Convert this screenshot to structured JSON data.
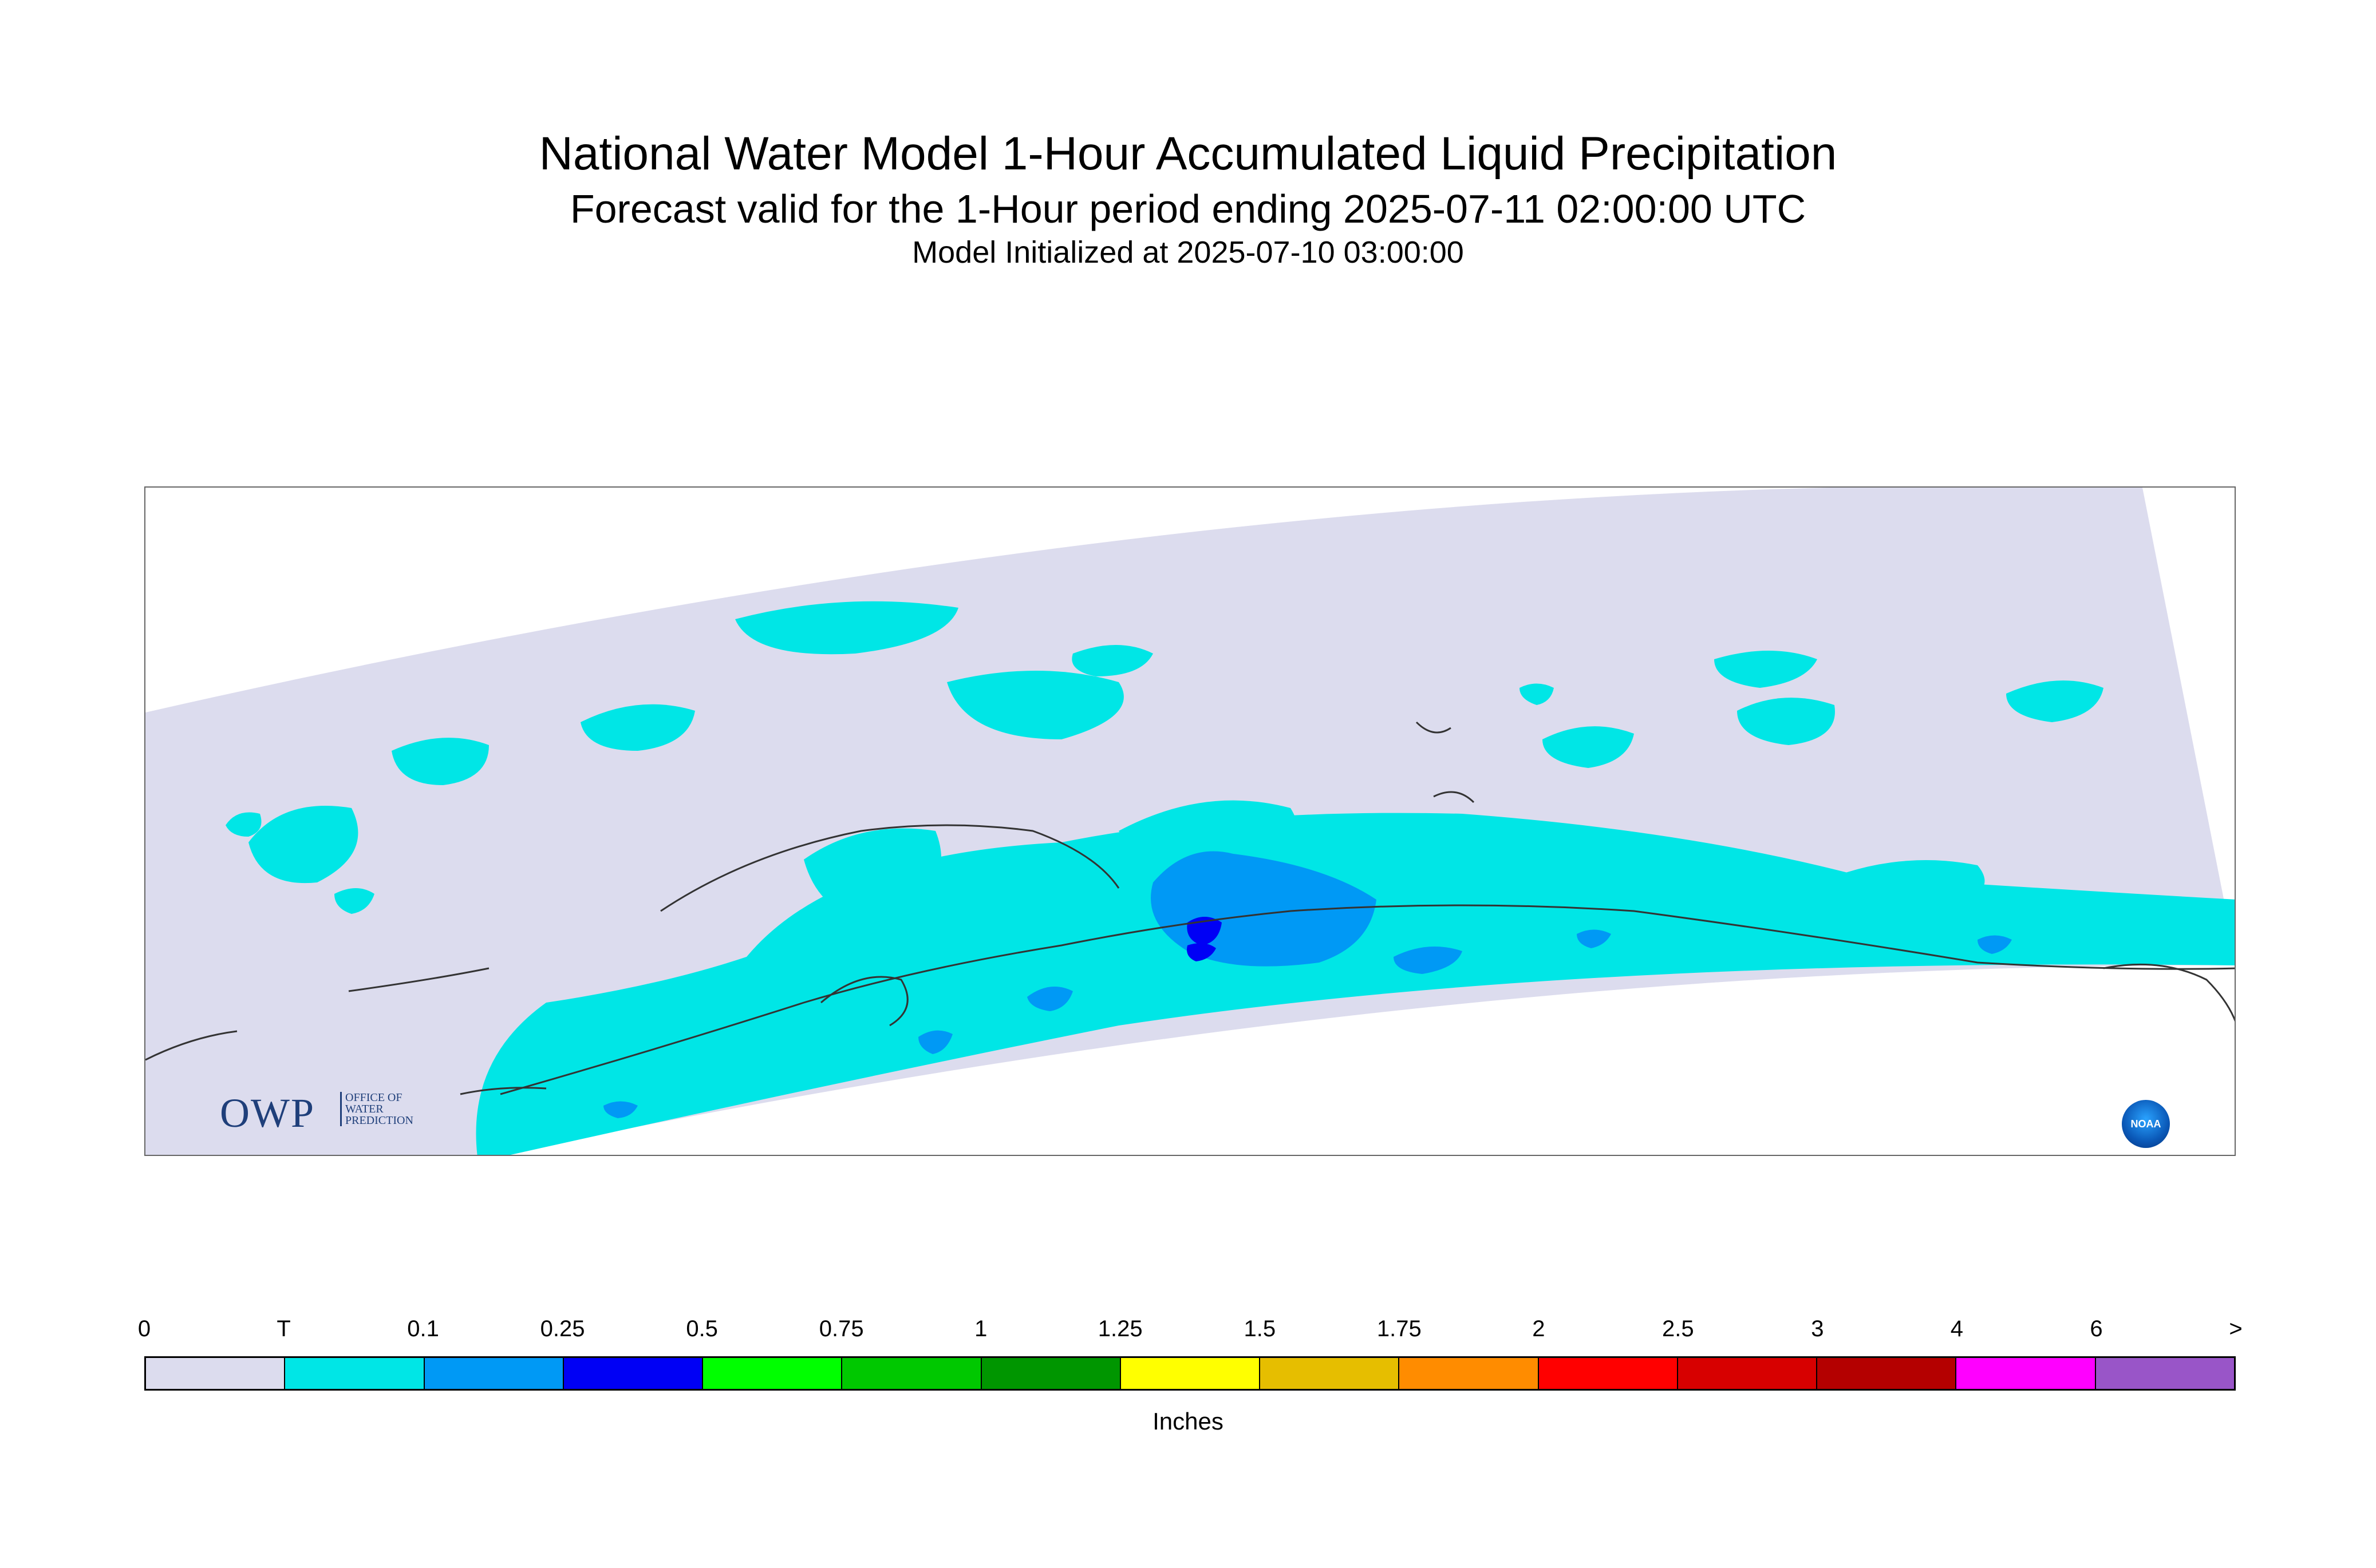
{
  "title": "National Water Model 1-Hour Accumulated Liquid Precipitation",
  "subtitle": "Forecast valid for the 1-Hour period ending 2025-07-11 02:00:00 UTC",
  "init": "Model Initialized at 2025-07-10 03:00:00",
  "owp_logo": {
    "main": "OWP",
    "line1": "OFFICE OF",
    "line2": "WATER",
    "line3": "PREDICTION"
  },
  "noaa_logo": "NOAA",
  "colors": {
    "no_precip": "#dcdcee",
    "trace": "#00e6e6",
    "light": "#0099f5",
    "moderate": "#0000f5"
  },
  "colorbar": {
    "ticks": [
      "0",
      "T",
      "0.1",
      "0.25",
      "0.5",
      "0.75",
      "1",
      "1.25",
      "1.5",
      "1.75",
      "2",
      "2.5",
      "3",
      "4",
      "6",
      ">"
    ],
    "colors": [
      "#dcdcee",
      "#00e6e6",
      "#0099f5",
      "#0000f5",
      "#00ff00",
      "#00c800",
      "#009600",
      "#ffff00",
      "#e6be00",
      "#ff8c00",
      "#ff0000",
      "#d70000",
      "#b40000",
      "#ff00ff",
      "#9955c8"
    ],
    "units": "Inches"
  }
}
